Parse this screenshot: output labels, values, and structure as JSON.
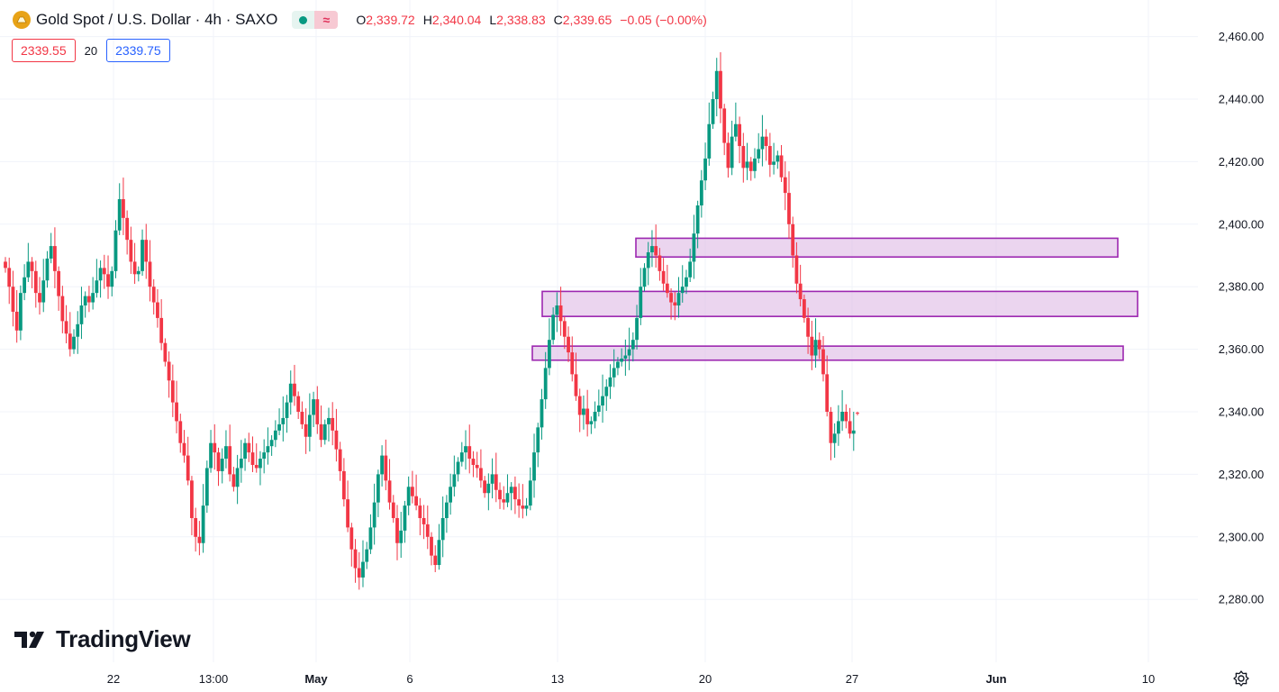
{
  "header": {
    "title": "Gold Spot / U.S. Dollar · 4h · SAXO",
    "wave_symbol": "≈",
    "ohlc": [
      {
        "key": "O",
        "value": "2,339.72"
      },
      {
        "key": "H",
        "value": "2,340.04"
      },
      {
        "key": "L",
        "value": "2,338.83"
      },
      {
        "key": "C",
        "value": "2,339.65"
      }
    ],
    "change": "−0.05 (−0.00%)"
  },
  "quote": {
    "bid": "2339.55",
    "spread": "20",
    "ask": "2339.75"
  },
  "logo": {
    "text": "TradingView"
  },
  "colors": {
    "up": "#089981",
    "down": "#f23645",
    "zone_fill": "#e1bee7",
    "zone_stroke": "#9c27b0",
    "accent": "#e8a317"
  },
  "chart_data": {
    "type": "candlestick",
    "title": "Gold Spot / U.S. Dollar · 4h · SAXO",
    "y_axis": {
      "ticks": [
        "2,460.00",
        "2,440.00",
        "2,420.00",
        "2,400.00",
        "2,380.00",
        "2,360.00",
        "2,340.00",
        "2,320.00",
        "2,300.00",
        "2,280.00"
      ],
      "range": [
        2266,
        2467
      ],
      "position": "right"
    },
    "x_axis": {
      "ticks": [
        "22",
        "13:00",
        "May",
        "6",
        "13",
        "20",
        "27",
        "Jun",
        "10"
      ],
      "bold_ticks": [
        "May",
        "Jun"
      ]
    },
    "grid": true,
    "last_candle": {
      "open": 2339.72,
      "high": 2340.04,
      "low": 2338.83,
      "close": 2339.65
    },
    "highlight_zones": [
      {
        "label": "",
        "y_low": 2389.5,
        "y_high": 2395.5
      },
      {
        "label": "",
        "y_low": 2370.5,
        "y_high": 2378.5
      },
      {
        "label": "",
        "y_low": 2356.5,
        "y_high": 2361.0
      }
    ],
    "closes": [
      2386,
      2380,
      2372,
      2366,
      2378,
      2383,
      2388,
      2385,
      2378,
      2375,
      2382,
      2389,
      2393,
      2385,
      2377,
      2369,
      2365,
      2360,
      2364,
      2368,
      2374,
      2377,
      2375,
      2378,
      2382,
      2386,
      2384,
      2380,
      2385,
      2398,
      2408,
      2402,
      2395,
      2388,
      2384,
      2385,
      2395,
      2388,
      2380,
      2375,
      2370,
      2362,
      2356,
      2350,
      2343,
      2337,
      2330,
      2326,
      2318,
      2306,
      2300,
      2298,
      2310,
      2322,
      2330,
      2327,
      2321,
      2325,
      2329,
      2320,
      2316,
      2322,
      2325,
      2330,
      2327,
      2323,
      2322,
      2325,
      2327,
      2329,
      2331,
      2334,
      2336,
      2338,
      2343,
      2349,
      2345,
      2340,
      2336,
      2332,
      2339,
      2344,
      2336,
      2331,
      2336,
      2338,
      2334,
      2328,
      2321,
      2312,
      2303,
      2296,
      2290,
      2287,
      2292,
      2296,
      2303,
      2311,
      2320,
      2326,
      2318,
      2311,
      2306,
      2298,
      2302,
      2310,
      2316,
      2313,
      2310,
      2306,
      2304,
      2300,
      2294,
      2291,
      2299,
      2306,
      2311,
      2316,
      2320,
      2324,
      2327,
      2329,
      2325,
      2323,
      2322,
      2318,
      2314,
      2317,
      2320,
      2315,
      2312,
      2311,
      2314,
      2316,
      2312,
      2310,
      2309,
      2310,
      2318,
      2327,
      2335,
      2344,
      2354,
      2363,
      2371,
      2374,
      2369,
      2364,
      2359,
      2352,
      2345,
      2339,
      2341,
      2336,
      2337,
      2340,
      2342,
      2345,
      2348,
      2351,
      2354,
      2356,
      2357,
      2358,
      2360,
      2363,
      2370,
      2380,
      2386,
      2391,
      2393,
      2390,
      2385,
      2381,
      2378,
      2375,
      2374,
      2378,
      2380,
      2383,
      2388,
      2397,
      2406,
      2414,
      2421,
      2432,
      2440,
      2449,
      2437,
      2426,
      2418,
      2428,
      2432,
      2425,
      2418,
      2420,
      2417,
      2421,
      2424,
      2428,
      2425,
      2419,
      2420,
      2422,
      2415,
      2410,
      2400,
      2390,
      2381,
      2376,
      2370,
      2364,
      2358,
      2363,
      2360,
      2352,
      2340,
      2330,
      2333,
      2337,
      2340,
      2337,
      2333,
      2334,
      2340
    ]
  }
}
